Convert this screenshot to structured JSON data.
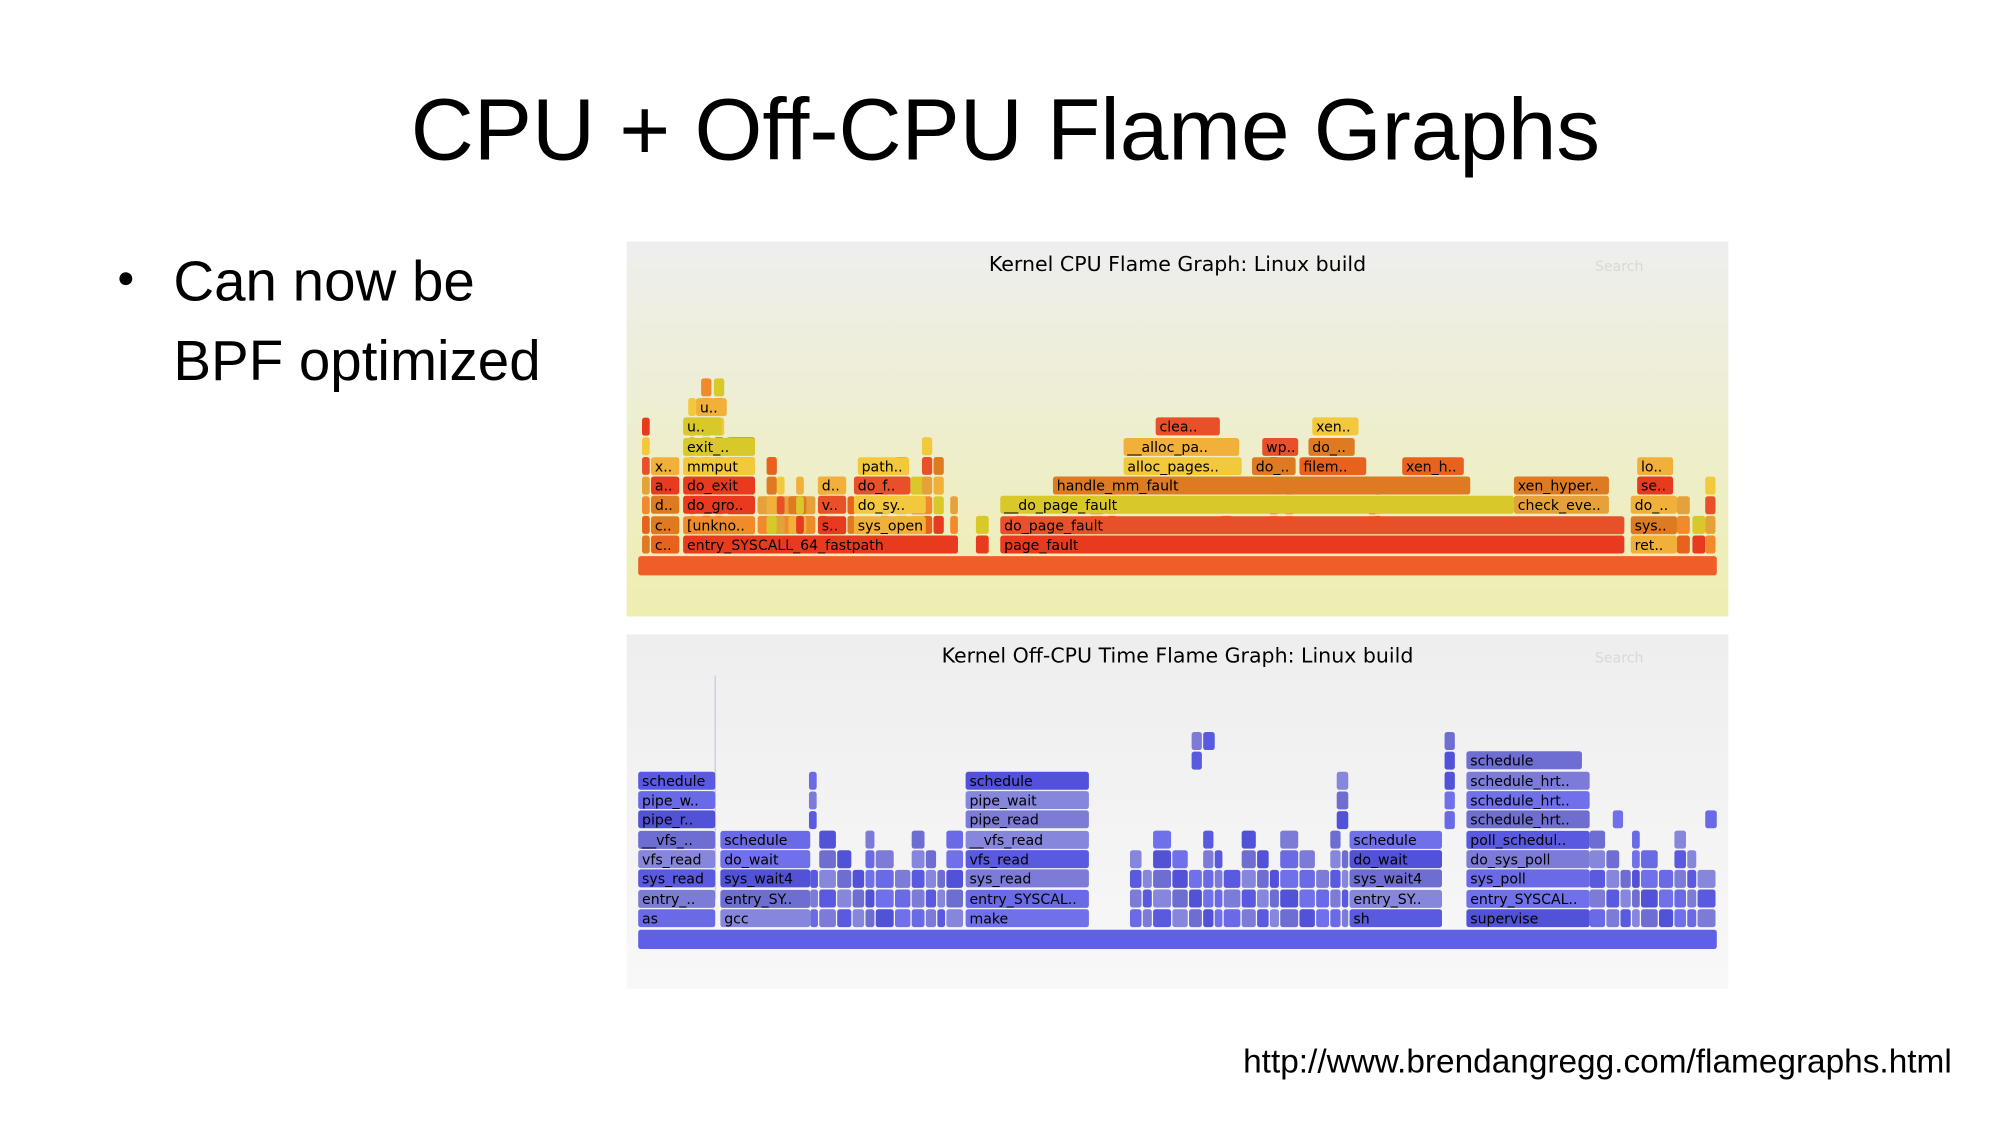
{
  "slide": {
    "title": "CPU + Off-CPU Flame Graphs",
    "bullet": [
      "Can now be",
      "BPF optimized"
    ],
    "url": "http://www.brendangregg.com/flamegraphs.html"
  },
  "cpu_graph": {
    "title": "Kernel CPU Flame Graph: Linux build",
    "search": "Search",
    "frames": [
      "c..",
      "entry_SYSCALL_64_fastpath",
      "page_fault",
      "ret..",
      "c..",
      "[unkno..",
      "s..",
      "sys_open",
      "do_page_fault",
      "sys..",
      "d..",
      "do_gro..",
      "v..",
      "do_sy..",
      "__do_page_fault",
      "check_eve..",
      "do_..",
      "a..",
      "do_exit",
      "d..",
      "do_f..",
      "handle_mm_fault",
      "xen_hyper..",
      "se..",
      "x..",
      "mmput",
      "path..",
      "alloc_pages..",
      "do_..",
      "filem..",
      "xen_h..",
      "lo..",
      "exit_..",
      "__alloc_pa..",
      "wp..",
      "do_..",
      "u..",
      "clea..",
      "xen..",
      "u.."
    ]
  },
  "offcpu_graph": {
    "title": "Kernel Off-CPU Time Flame Graph: Linux build",
    "search": "Search",
    "frames": [
      "as",
      "gcc",
      "make",
      "sh",
      "supervise",
      "entry_..",
      "entry_SY..",
      "entry_SYSCAL..",
      "entry_SY..",
      "entry_SYSCAL..",
      "sys_read",
      "sys_wait4",
      "sys_read",
      "sys_wait4",
      "sys_poll",
      "vfs_read",
      "do_wait",
      "vfs_read",
      "do_wait",
      "do_sys_poll",
      "__vfs_..",
      "schedule",
      "__vfs_read",
      "schedule",
      "poll_schedul..",
      "pipe_r..",
      "pipe_read",
      "schedule_hrt..",
      "pipe_w..",
      "pipe_wait",
      "schedule_hrt..",
      "schedule",
      "schedule",
      "schedule_hrt..",
      "schedule"
    ]
  }
}
